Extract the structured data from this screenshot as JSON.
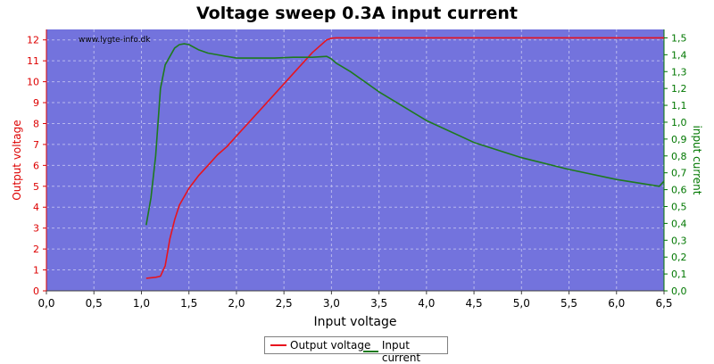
{
  "chart_data": {
    "type": "line",
    "title": "Voltage sweep 0.3A input current",
    "xlabel": "Input voltage",
    "ylabel_left": "Output voltage",
    "ylabel_right": "input current",
    "watermark": "www.lygte-info.dk",
    "xlim": [
      0,
      6.5
    ],
    "ylim_left": [
      0,
      12.5
    ],
    "ylim_right": [
      0,
      1.55
    ],
    "x_ticks": [
      "0,0",
      "0,5",
      "1,0",
      "1,5",
      "2,0",
      "2,5",
      "3,0",
      "3,5",
      "4,0",
      "4,5",
      "5,0",
      "5,5",
      "6,0",
      "6,5"
    ],
    "y_left_ticks": [
      "0",
      "1",
      "2",
      "3",
      "4",
      "5",
      "6",
      "7",
      "8",
      "9",
      "10",
      "11",
      "12"
    ],
    "y_right_ticks": [
      "0,0",
      "0,1",
      "0,2",
      "0,3",
      "0,4",
      "0,5",
      "0,6",
      "0,7",
      "0,8",
      "0,9",
      "1,0",
      "1,1",
      "1,2",
      "1,3",
      "1,4",
      "1,5"
    ],
    "grid": true,
    "legend_position": "bottom-center",
    "colors": {
      "plot_bg": "#7373dd",
      "output": "#e8141e",
      "input": "#1e7a1e",
      "left_axis": "#dd0000",
      "right_axis": "#007700"
    },
    "series": [
      {
        "name": "Output voltage",
        "axis": "left",
        "x": [
          1.05,
          1.15,
          1.2,
          1.25,
          1.3,
          1.35,
          1.4,
          1.5,
          1.6,
          1.7,
          1.8,
          1.9,
          2.0,
          2.2,
          2.4,
          2.6,
          2.8,
          2.95,
          3.0,
          3.05,
          3.5,
          4.0,
          5.0,
          6.0,
          6.5
        ],
        "y": [
          0.6,
          0.65,
          0.7,
          1.2,
          2.5,
          3.4,
          4.1,
          4.9,
          5.5,
          6.0,
          6.5,
          6.9,
          7.4,
          8.4,
          9.4,
          10.4,
          11.4,
          12.0,
          12.08,
          12.1,
          12.1,
          12.1,
          12.1,
          12.1,
          12.1
        ]
      },
      {
        "name": "Input current",
        "axis": "right",
        "x": [
          1.05,
          1.1,
          1.15,
          1.2,
          1.25,
          1.3,
          1.35,
          1.4,
          1.45,
          1.5,
          1.6,
          1.7,
          1.8,
          2.0,
          2.2,
          2.4,
          2.6,
          2.8,
          2.95,
          3.0,
          3.05,
          3.2,
          3.5,
          4.0,
          4.5,
          5.0,
          5.5,
          6.0,
          6.45,
          6.5
        ],
        "y": [
          0.39,
          0.55,
          0.8,
          1.2,
          1.34,
          1.39,
          1.44,
          1.46,
          1.465,
          1.46,
          1.43,
          1.41,
          1.4,
          1.38,
          1.38,
          1.38,
          1.385,
          1.385,
          1.39,
          1.375,
          1.35,
          1.3,
          1.18,
          1.01,
          0.88,
          0.79,
          0.72,
          0.66,
          0.62,
          0.65
        ]
      }
    ]
  }
}
